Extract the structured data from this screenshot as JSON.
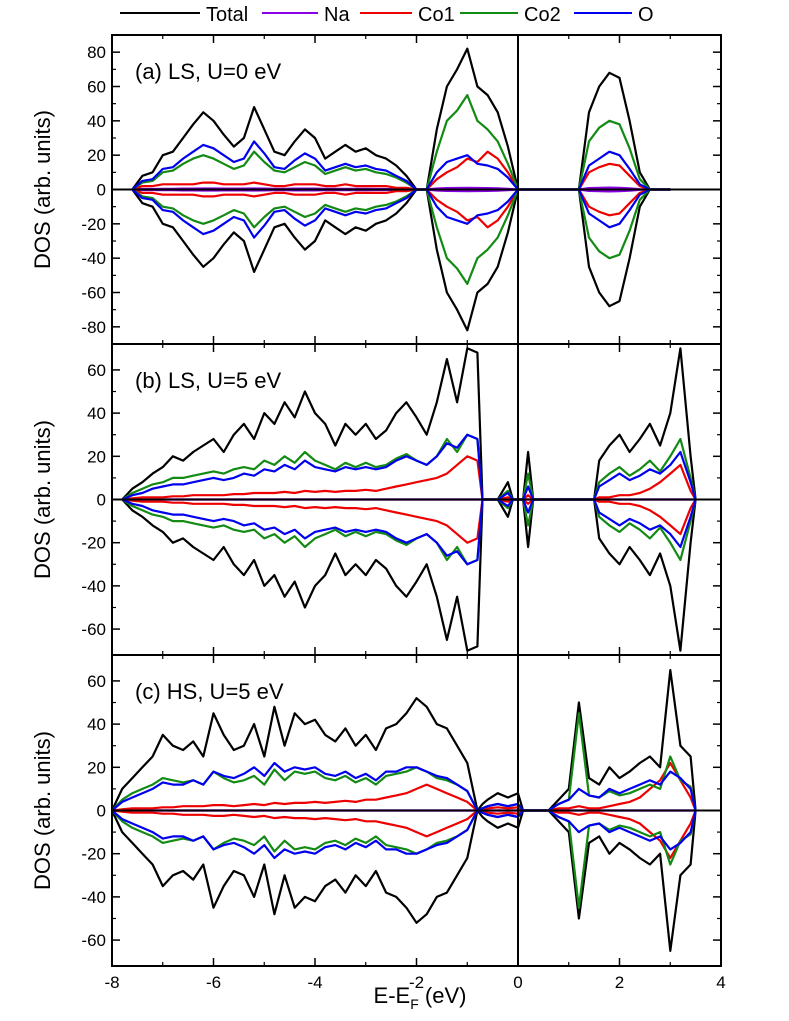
{
  "legend": {
    "entries": [
      {
        "label": "Total",
        "color": "#000000"
      },
      {
        "label": "Na",
        "color": "#8a00e6"
      },
      {
        "label": "Co1",
        "color": "#ee0000"
      },
      {
        "label": "Co2",
        "color": "#138a13"
      },
      {
        "label": "O",
        "color": "#0000ee"
      }
    ]
  },
  "chart_data": [
    {
      "type": "line",
      "panel_label": "(a) LS, U=0 eV",
      "xlabel": "E-E",
      "xlabel_sub": "F",
      "xlabel_unit": " (eV)",
      "ylabel": "DOS (arb. units)",
      "xlim": [
        -8,
        4
      ],
      "ylim": [
        -90,
        90
      ],
      "x_ticks": [
        -8,
        -6,
        -4,
        -2,
        0,
        2,
        4
      ],
      "y_ticks": [
        -80,
        -60,
        -40,
        -20,
        0,
        20,
        40,
        60,
        80
      ],
      "fermi_line_x": 0,
      "mirror_negative": true,
      "x": [
        -7.6,
        -7.4,
        -7.2,
        -7.0,
        -6.8,
        -6.6,
        -6.4,
        -6.2,
        -6.0,
        -5.8,
        -5.6,
        -5.4,
        -5.2,
        -5.0,
        -4.8,
        -4.6,
        -4.4,
        -4.2,
        -4.0,
        -3.8,
        -3.6,
        -3.4,
        -3.2,
        -3.0,
        -2.8,
        -2.6,
        -2.4,
        -2.2,
        -2.0,
        -1.9,
        -1.8,
        -1.6,
        -1.4,
        -1.2,
        -1.0,
        -0.8,
        -0.6,
        -0.4,
        -0.2,
        0.0,
        0.2,
        0.4,
        0.6,
        0.8,
        1.0,
        1.2,
        1.4,
        1.6,
        1.8,
        2.0,
        2.2,
        2.4,
        2.6,
        2.8,
        3.0
      ],
      "series": [
        {
          "name": "Total",
          "color": "#000000",
          "values": [
            0,
            8,
            10,
            20,
            22,
            30,
            38,
            45,
            40,
            32,
            25,
            30,
            48,
            35,
            22,
            20,
            28,
            35,
            30,
            18,
            22,
            26,
            22,
            24,
            20,
            18,
            14,
            8,
            0,
            0,
            0,
            35,
            60,
            70,
            82,
            60,
            55,
            45,
            25,
            0,
            0,
            0,
            0,
            0,
            0,
            0,
            45,
            60,
            68,
            65,
            40,
            10,
            0,
            0,
            0
          ]
        },
        {
          "name": "Na",
          "color": "#8a00e6",
          "values": [
            0,
            0.3,
            0.3,
            0.4,
            0.4,
            0.5,
            0.5,
            0.6,
            0.6,
            0.5,
            0.5,
            0.5,
            0.6,
            0.5,
            0.4,
            0.4,
            0.5,
            0.5,
            0.5,
            0.4,
            0.4,
            0.4,
            0.4,
            0.4,
            0.3,
            0.3,
            0.3,
            0.2,
            0,
            0,
            0,
            0.6,
            0.8,
            0.9,
            1.0,
            0.9,
            0.8,
            0.7,
            0.4,
            0,
            0,
            0,
            0,
            0,
            0,
            0,
            0.8,
            1.0,
            1.1,
            1.0,
            0.7,
            0.2,
            0,
            0,
            0
          ]
        },
        {
          "name": "Co1",
          "color": "#ee0000",
          "values": [
            0,
            2,
            2,
            3,
            3,
            3,
            3,
            4,
            4,
            3,
            3,
            3,
            4,
            3,
            2,
            2,
            3,
            3,
            3,
            2,
            2,
            3,
            2,
            2,
            2,
            2,
            1,
            1,
            0,
            0,
            0,
            6,
            10,
            13,
            18,
            16,
            22,
            18,
            10,
            0,
            0,
            0,
            0,
            0,
            0,
            0,
            10,
            13,
            15,
            14,
            8,
            2,
            0,
            0,
            0
          ]
        },
        {
          "name": "Co2",
          "color": "#138a13",
          "values": [
            0,
            4,
            5,
            10,
            11,
            15,
            18,
            20,
            18,
            15,
            12,
            14,
            22,
            16,
            11,
            10,
            13,
            16,
            14,
            9,
            11,
            13,
            11,
            12,
            10,
            9,
            7,
            4,
            0,
            0,
            0,
            22,
            40,
            46,
            55,
            40,
            35,
            28,
            15,
            0,
            0,
            0,
            0,
            0,
            0,
            0,
            28,
            36,
            40,
            38,
            24,
            6,
            0,
            0,
            0
          ]
        },
        {
          "name": "O",
          "color": "#0000ee",
          "values": [
            0,
            5,
            6,
            12,
            13,
            18,
            22,
            26,
            24,
            20,
            16,
            18,
            28,
            21,
            13,
            12,
            17,
            21,
            18,
            11,
            13,
            15,
            13,
            14,
            12,
            11,
            8,
            5,
            0,
            0,
            0,
            10,
            16,
            18,
            20,
            15,
            14,
            12,
            7,
            0,
            0,
            0,
            0,
            0,
            0,
            0,
            14,
            18,
            22,
            20,
            12,
            3,
            0,
            0,
            0
          ]
        }
      ]
    },
    {
      "type": "line",
      "panel_label": "(b) LS, U=5 eV",
      "xlabel": "E-E",
      "xlabel_sub": "F",
      "xlabel_unit": " (eV)",
      "ylabel": "DOS (arb. units)",
      "xlim": [
        -8,
        4
      ],
      "ylim": [
        -72,
        72
      ],
      "x_ticks": [
        -8,
        -6,
        -4,
        -2,
        0,
        2,
        4
      ],
      "y_ticks": [
        -60,
        -40,
        -20,
        0,
        20,
        40,
        60
      ],
      "fermi_line_x": 0,
      "mirror_negative": true,
      "x": [
        -7.8,
        -7.6,
        -7.4,
        -7.2,
        -7.0,
        -6.8,
        -6.6,
        -6.4,
        -6.2,
        -6.0,
        -5.8,
        -5.6,
        -5.4,
        -5.2,
        -5.0,
        -4.8,
        -4.6,
        -4.4,
        -4.2,
        -4.0,
        -3.8,
        -3.6,
        -3.4,
        -3.2,
        -3.0,
        -2.8,
        -2.6,
        -2.4,
        -2.2,
        -2.0,
        -1.8,
        -1.6,
        -1.4,
        -1.2,
        -1.0,
        -0.8,
        -0.7,
        -0.6,
        -0.4,
        -0.2,
        -0.1,
        0.0,
        0.1,
        0.2,
        0.3,
        0.4,
        0.5,
        1.5,
        1.6,
        1.8,
        2.0,
        2.2,
        2.4,
        2.6,
        2.8,
        3.0,
        3.2,
        3.4,
        3.5
      ],
      "series": [
        {
          "name": "Total",
          "color": "#000000",
          "values": [
            0,
            5,
            8,
            12,
            15,
            20,
            18,
            22,
            25,
            28,
            22,
            30,
            35,
            28,
            40,
            35,
            45,
            38,
            50,
            40,
            35,
            25,
            35,
            30,
            35,
            28,
            32,
            40,
            45,
            38,
            30,
            45,
            65,
            45,
            70,
            68,
            0,
            0,
            0,
            8,
            0,
            0,
            0,
            22,
            0,
            0,
            0,
            0,
            18,
            25,
            30,
            22,
            28,
            35,
            25,
            40,
            70,
            20,
            0
          ]
        },
        {
          "name": "Na",
          "color": "#8a00e6",
          "values": [
            0,
            0,
            0,
            0,
            0,
            0,
            0,
            0,
            0,
            0,
            0,
            0,
            0,
            0,
            0,
            0,
            0,
            0,
            0,
            0,
            0,
            0,
            0,
            0,
            0,
            0,
            0,
            0,
            0,
            0,
            0,
            0,
            0,
            0,
            0,
            0,
            0,
            0,
            0,
            0,
            0,
            0,
            0,
            0,
            0,
            0,
            0,
            0,
            0,
            0,
            0,
            0,
            0,
            0,
            0,
            0,
            0,
            0,
            0
          ]
        },
        {
          "name": "Co1",
          "color": "#ee0000",
          "values": [
            0,
            0.5,
            1,
            1,
            1,
            1.5,
            1.5,
            2,
            2,
            2,
            2,
            2.5,
            2.5,
            3,
            3,
            3,
            3.5,
            3,
            4,
            3.5,
            4,
            3.5,
            4,
            4,
            4.5,
            4,
            5,
            6,
            7,
            8,
            9,
            10,
            12,
            16,
            20,
            18,
            0,
            0,
            0,
            1,
            0,
            0,
            0,
            2,
            0,
            0,
            0,
            0,
            1,
            1,
            2,
            2,
            3,
            5,
            8,
            12,
            16,
            4,
            0
          ]
        },
        {
          "name": "Co2",
          "color": "#138a13",
          "values": [
            0,
            3,
            5,
            7,
            8,
            10,
            10,
            11,
            12,
            13,
            12,
            14,
            15,
            14,
            18,
            16,
            20,
            17,
            22,
            18,
            16,
            14,
            17,
            15,
            17,
            15,
            16,
            19,
            21,
            18,
            16,
            20,
            28,
            22,
            30,
            28,
            0,
            0,
            0,
            4,
            0,
            0,
            0,
            12,
            0,
            0,
            0,
            0,
            8,
            12,
            15,
            11,
            14,
            18,
            13,
            20,
            28,
            10,
            0
          ]
        },
        {
          "name": "O",
          "color": "#0000ee",
          "values": [
            0,
            2,
            3,
            5,
            6,
            7,
            7,
            8,
            9,
            10,
            9,
            10,
            12,
            11,
            14,
            13,
            16,
            14,
            18,
            15,
            14,
            13,
            15,
            14,
            15,
            14,
            15,
            18,
            20,
            18,
            16,
            20,
            26,
            24,
            30,
            28,
            0,
            0,
            0,
            3,
            0,
            0,
            0,
            6,
            0,
            0,
            0,
            0,
            6,
            9,
            12,
            9,
            11,
            14,
            12,
            16,
            22,
            8,
            0
          ]
        }
      ]
    },
    {
      "type": "line",
      "panel_label": "(c) HS, U=5 eV",
      "xlabel": "E-E",
      "xlabel_sub": "F",
      "xlabel_unit": " (eV)",
      "ylabel": "DOS (arb. units)",
      "xlim": [
        -8,
        4
      ],
      "ylim": [
        -72,
        72
      ],
      "x_ticks": [
        -8,
        -6,
        -4,
        -2,
        0,
        2,
        4
      ],
      "y_ticks": [
        -60,
        -40,
        -20,
        0,
        20,
        40,
        60
      ],
      "fermi_line_x": 0,
      "mirror_negative": true,
      "x": [
        -8.0,
        -7.8,
        -7.6,
        -7.4,
        -7.2,
        -7.0,
        -6.8,
        -6.6,
        -6.4,
        -6.2,
        -6.0,
        -5.8,
        -5.6,
        -5.4,
        -5.2,
        -5.0,
        -4.8,
        -4.6,
        -4.4,
        -4.2,
        -4.0,
        -3.8,
        -3.6,
        -3.4,
        -3.2,
        -3.0,
        -2.8,
        -2.6,
        -2.4,
        -2.2,
        -2.0,
        -1.8,
        -1.6,
        -1.4,
        -1.2,
        -1.0,
        -0.8,
        -0.7,
        -0.6,
        -0.4,
        -0.2,
        0.0,
        0.1,
        0.2,
        0.6,
        0.8,
        1.0,
        1.2,
        1.4,
        1.6,
        1.8,
        2.0,
        2.2,
        2.4,
        2.6,
        2.8,
        3.0,
        3.2,
        3.4,
        3.5
      ],
      "series": [
        {
          "name": "Total",
          "color": "#000000",
          "values": [
            0,
            10,
            15,
            20,
            25,
            35,
            30,
            28,
            32,
            25,
            45,
            35,
            28,
            30,
            40,
            25,
            48,
            30,
            45,
            40,
            42,
            35,
            32,
            38,
            30,
            35,
            28,
            38,
            40,
            45,
            52,
            48,
            40,
            38,
            30,
            22,
            0,
            3,
            5,
            8,
            6,
            8,
            0,
            0,
            0,
            5,
            10,
            50,
            15,
            12,
            20,
            15,
            18,
            22,
            25,
            20,
            65,
            30,
            25,
            0
          ]
        },
        {
          "name": "Na",
          "color": "#8a00e6",
          "values": [
            0,
            0,
            0,
            0,
            0,
            0,
            0,
            0,
            0,
            0,
            0,
            0,
            0,
            0,
            0,
            0,
            0,
            0,
            0,
            0,
            0,
            0,
            0,
            0,
            0,
            0,
            0,
            0,
            0,
            0,
            0,
            0,
            0,
            0,
            0,
            0,
            0,
            0,
            0,
            0,
            0,
            0,
            0,
            0,
            0,
            0,
            0,
            0,
            0,
            0,
            0,
            0,
            0,
            0,
            0,
            0,
            0,
            0,
            0,
            0
          ]
        },
        {
          "name": "Co1",
          "color": "#ee0000",
          "values": [
            0,
            0.5,
            1,
            1,
            1,
            1.5,
            1.5,
            2,
            2,
            2,
            2.5,
            2.5,
            2,
            2.5,
            3,
            2.5,
            3.5,
            3,
            3.5,
            3.5,
            4,
            3.5,
            4,
            4.5,
            4,
            5,
            5,
            6,
            7,
            8,
            10,
            12,
            10,
            8,
            6,
            4,
            0,
            0.5,
            1,
            1.5,
            1,
            1.5,
            0,
            0,
            0,
            1,
            1,
            2,
            1,
            1,
            2,
            3,
            4,
            6,
            10,
            14,
            22,
            14,
            6,
            0
          ]
        },
        {
          "name": "Co2",
          "color": "#138a13",
          "values": [
            0,
            5,
            8,
            10,
            12,
            15,
            14,
            13,
            14,
            12,
            18,
            15,
            13,
            14,
            16,
            12,
            19,
            14,
            18,
            17,
            18,
            15,
            14,
            16,
            13,
            15,
            12,
            16,
            17,
            18,
            20,
            18,
            15,
            14,
            12,
            9,
            0,
            1,
            2,
            3,
            2,
            3,
            0,
            0,
            0,
            3,
            5,
            45,
            7,
            6,
            9,
            7,
            8,
            10,
            12,
            10,
            25,
            14,
            11,
            0
          ]
        },
        {
          "name": "O",
          "color": "#0000ee",
          "values": [
            0,
            4,
            6,
            8,
            10,
            13,
            12,
            12,
            14,
            12,
            18,
            16,
            15,
            17,
            20,
            16,
            22,
            18,
            20,
            19,
            20,
            17,
            16,
            18,
            15,
            17,
            14,
            18,
            18,
            20,
            20,
            18,
            16,
            15,
            12,
            9,
            0,
            1,
            2,
            3,
            2,
            3,
            0,
            0,
            0,
            3,
            5,
            10,
            7,
            6,
            10,
            8,
            10,
            12,
            14,
            12,
            18,
            15,
            10,
            0
          ]
        }
      ]
    }
  ]
}
